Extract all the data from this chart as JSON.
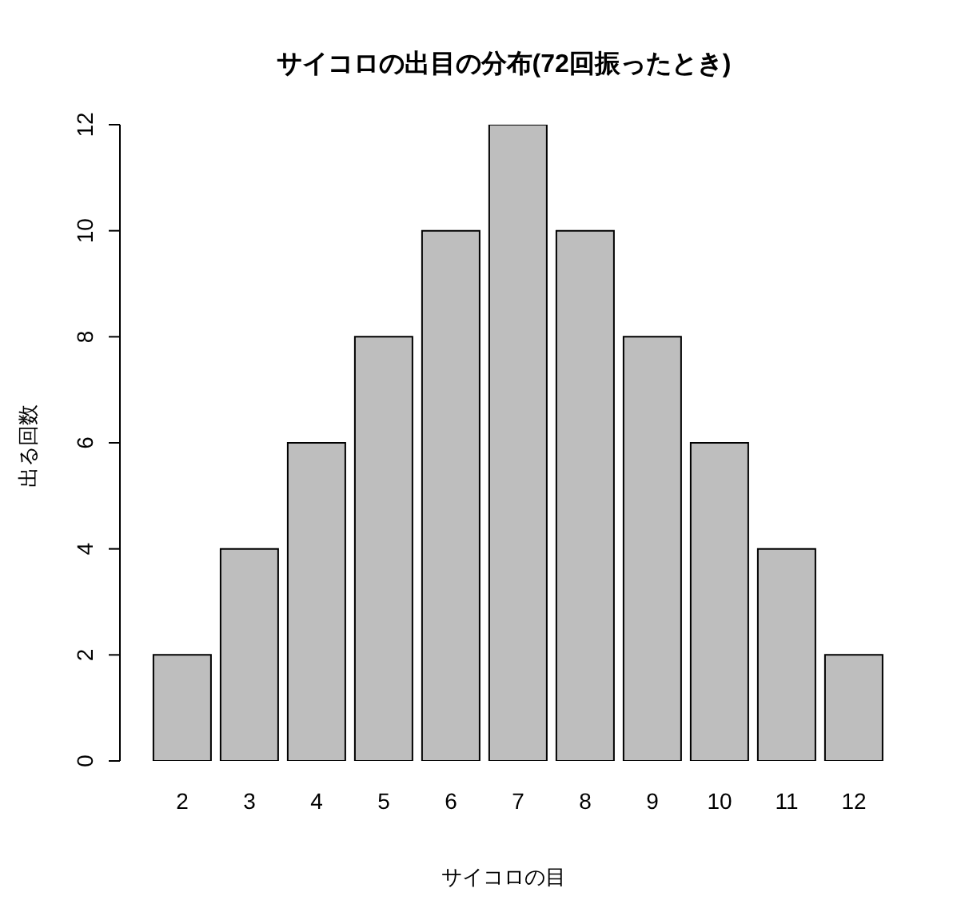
{
  "chart_data": {
    "type": "bar",
    "title": "サイコロの出目の分布(72回振ったとき)",
    "xlabel": "サイコロの目",
    "ylabel": "出る回数",
    "categories": [
      "2",
      "3",
      "4",
      "5",
      "6",
      "7",
      "8",
      "9",
      "10",
      "11",
      "12"
    ],
    "values": [
      2,
      4,
      6,
      8,
      10,
      12,
      10,
      8,
      6,
      4,
      2
    ],
    "color": "#bebebe",
    "ylim": [
      0,
      12
    ],
    "yticks": [
      0,
      2,
      4,
      6,
      8,
      10,
      12
    ],
    "grid": false
  }
}
